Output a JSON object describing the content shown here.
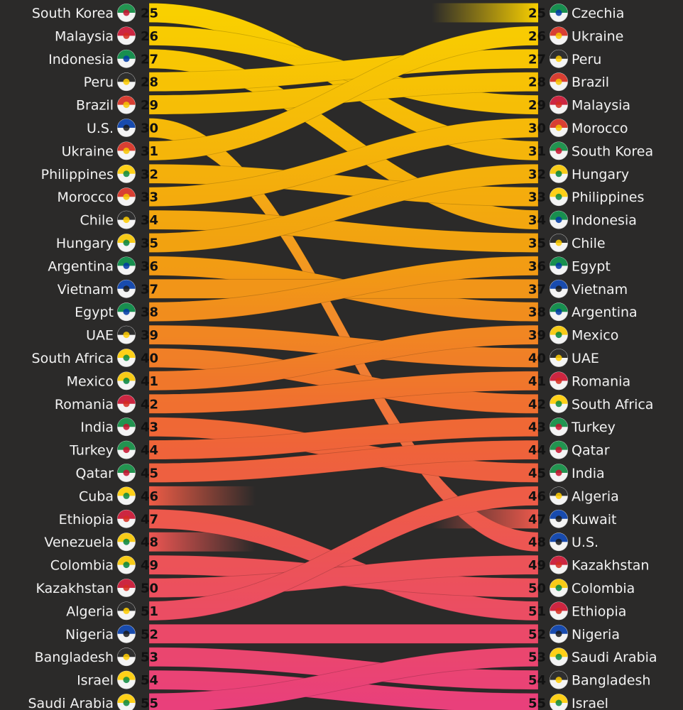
{
  "chart_data": {
    "type": "bump",
    "rank_range": [
      25,
      55
    ],
    "colors": {
      "background": "#2b2a29",
      "band_top": "#f9d000",
      "band_mid": "#f2a011",
      "band_low": "#ef6438",
      "band_bottom": "#e9407b",
      "label_text": "#f2f2f2",
      "rank_text": "#111111"
    },
    "countries": [
      {
        "name": "South Korea",
        "flag": "south-korea-flag",
        "left_rank": 25,
        "right_rank": 31
      },
      {
        "name": "Malaysia",
        "flag": "malaysia-flag",
        "left_rank": 26,
        "right_rank": 29
      },
      {
        "name": "Indonesia",
        "flag": "indonesia-flag",
        "left_rank": 27,
        "right_rank": 34
      },
      {
        "name": "Peru",
        "flag": "peru-flag",
        "left_rank": 28,
        "right_rank": 27
      },
      {
        "name": "Brazil",
        "flag": "brazil-flag",
        "left_rank": 29,
        "right_rank": 28
      },
      {
        "name": "U.S.",
        "flag": "us-flag",
        "left_rank": 30,
        "right_rank": 48
      },
      {
        "name": "Ukraine",
        "flag": "ukraine-flag",
        "left_rank": 31,
        "right_rank": 26
      },
      {
        "name": "Philippines",
        "flag": "philippines-flag",
        "left_rank": 32,
        "right_rank": 33
      },
      {
        "name": "Morocco",
        "flag": "morocco-flag",
        "left_rank": 33,
        "right_rank": 30
      },
      {
        "name": "Chile",
        "flag": "chile-flag",
        "left_rank": 34,
        "right_rank": 35
      },
      {
        "name": "Hungary",
        "flag": "hungary-flag",
        "left_rank": 35,
        "right_rank": 32
      },
      {
        "name": "Argentina",
        "flag": "argentina-flag",
        "left_rank": 36,
        "right_rank": 38
      },
      {
        "name": "Vietnam",
        "flag": "vietnam-flag",
        "left_rank": 37,
        "right_rank": 37
      },
      {
        "name": "Egypt",
        "flag": "egypt-flag",
        "left_rank": 38,
        "right_rank": 36
      },
      {
        "name": "UAE",
        "flag": "uae-flag",
        "left_rank": 39,
        "right_rank": 40
      },
      {
        "name": "South Africa",
        "flag": "south-africa-flag",
        "left_rank": 40,
        "right_rank": 42
      },
      {
        "name": "Mexico",
        "flag": "mexico-flag",
        "left_rank": 41,
        "right_rank": 39
      },
      {
        "name": "Romania",
        "flag": "romania-flag",
        "left_rank": 42,
        "right_rank": 41
      },
      {
        "name": "India",
        "flag": "india-flag",
        "left_rank": 43,
        "right_rank": 45
      },
      {
        "name": "Turkey",
        "flag": "turkey-flag",
        "left_rank": 44,
        "right_rank": 43
      },
      {
        "name": "Qatar",
        "flag": "qatar-flag",
        "left_rank": 45,
        "right_rank": 44
      },
      {
        "name": "Cuba",
        "flag": "cuba-flag",
        "left_rank": 46,
        "right_rank": null
      },
      {
        "name": "Ethiopia",
        "flag": "ethiopia-flag",
        "left_rank": 47,
        "right_rank": 51
      },
      {
        "name": "Venezuela",
        "flag": "venezuela-flag",
        "left_rank": 48,
        "right_rank": null
      },
      {
        "name": "Colombia",
        "flag": "colombia-flag",
        "left_rank": 49,
        "right_rank": 50
      },
      {
        "name": "Kazakhstan",
        "flag": "kazakhstan-flag",
        "left_rank": 50,
        "right_rank": 49
      },
      {
        "name": "Algeria",
        "flag": "algeria-flag",
        "left_rank": 51,
        "right_rank": 46
      },
      {
        "name": "Nigeria",
        "flag": "nigeria-flag",
        "left_rank": 52,
        "right_rank": 52
      },
      {
        "name": "Bangladesh",
        "flag": "bangladesh-flag",
        "left_rank": 53,
        "right_rank": 54
      },
      {
        "name": "Israel",
        "flag": "israel-flag",
        "left_rank": 54,
        "right_rank": 55
      },
      {
        "name": "Saudi Arabia",
        "flag": "saudi-arabia-flag",
        "left_rank": 55,
        "right_rank": 53
      },
      {
        "name": "Czechia",
        "flag": "czechia-flag",
        "left_rank": null,
        "right_rank": 25
      },
      {
        "name": "Kuwait",
        "flag": "kuwait-flag",
        "left_rank": null,
        "right_rank": 47
      }
    ]
  }
}
